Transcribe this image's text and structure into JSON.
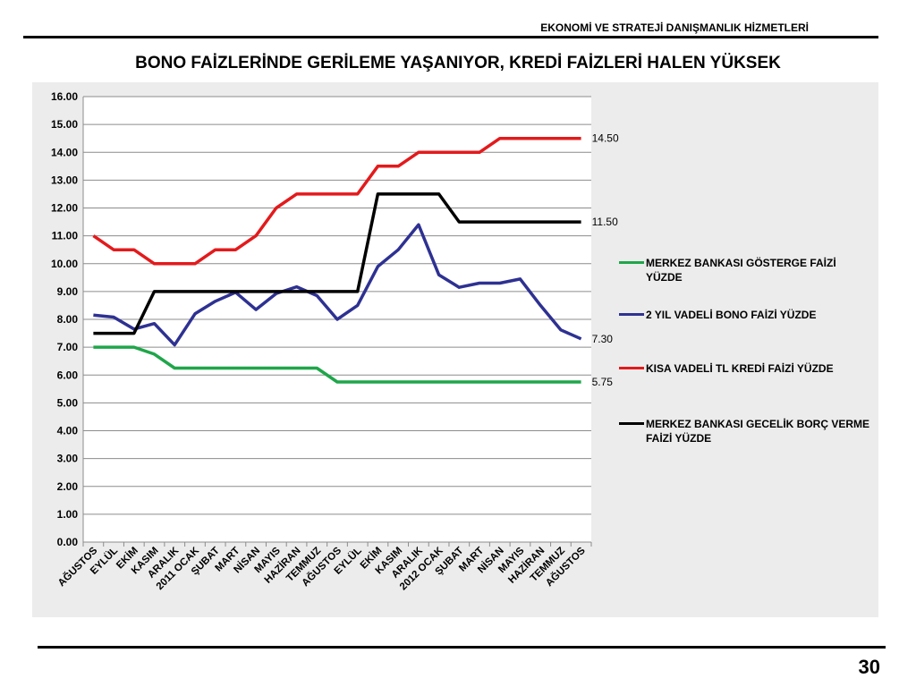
{
  "header": {
    "text": "EKONOMİ VE STRATEJİ DANIŞMANLIK HİZMETLERİ"
  },
  "title": "BONO FAİZLERİNDE GERİLEME YAŞANIYOR,  KREDİ FAİZLERİ HALEN YÜKSEK",
  "page_number": "30",
  "chart_data": {
    "type": "line",
    "categories": [
      "AĞUSTOS",
      "EYLÜL",
      "EKİM",
      "KASIM",
      "ARALIK",
      "2011 OCAK",
      "ŞUBAT",
      "MART",
      "NİSAN",
      "MAYIS",
      "HAZİRAN",
      "TEMMUZ",
      "AĞUSTOS",
      "EYLÜL",
      "EKİM",
      "KASIM",
      "ARALIK",
      "2012 OCAK",
      "ŞUBAT",
      "MART",
      "NİSAN",
      "MAYIS",
      "HAZİRAN",
      "TEMMUZ",
      "AĞUSTOS"
    ],
    "ylim": [
      0,
      16
    ],
    "yticks": [
      "0.00",
      "1.00",
      "2.00",
      "3.00",
      "4.00",
      "5.00",
      "6.00",
      "7.00",
      "8.00",
      "9.00",
      "10.00",
      "11.00",
      "12.00",
      "13.00",
      "14.00",
      "15.00",
      "16.00"
    ],
    "grid": true,
    "legend_position": "right",
    "series": [
      {
        "name": "MERKEZ BANKASI GÖSTERGE FAİZİ YÜZDE",
        "color": "#1fa64a",
        "values": [
          7.0,
          7.0,
          7.0,
          6.75,
          6.25,
          6.25,
          6.25,
          6.25,
          6.25,
          6.25,
          6.25,
          6.25,
          5.75,
          5.75,
          5.75,
          5.75,
          5.75,
          5.75,
          5.75,
          5.75,
          5.75,
          5.75,
          5.75,
          5.75,
          5.75
        ],
        "end_label": "5.75"
      },
      {
        "name": "2 YIL VADELİ BONO FAİZİ YÜZDE",
        "color": "#2e3192",
        "values": [
          8.15,
          8.08,
          7.65,
          7.85,
          7.08,
          8.2,
          8.65,
          8.97,
          8.35,
          8.93,
          9.17,
          8.85,
          8.0,
          8.5,
          9.9,
          10.5,
          11.4,
          9.6,
          9.15,
          9.3,
          9.3,
          9.45,
          8.5,
          7.62,
          7.3
        ],
        "end_label": "7.30"
      },
      {
        "name": "KISA VADELİ TL KREDİ FAİZİ YÜZDE",
        "color": "#e31a1c",
        "values": [
          11.0,
          10.5,
          10.5,
          10.0,
          10.0,
          10.0,
          10.5,
          10.5,
          11.0,
          12.0,
          12.5,
          12.5,
          12.5,
          12.5,
          13.5,
          13.5,
          14.0,
          14.0,
          14.0,
          14.0,
          14.5,
          14.5,
          14.5,
          14.5,
          14.5
        ],
        "end_label": "14.50"
      },
      {
        "name": "MERKEZ BANKASI GECELİK BORÇ VERME FAİZİ YÜZDE",
        "color": "#000000",
        "values": [
          7.5,
          7.5,
          7.5,
          9.0,
          9.0,
          9.0,
          9.0,
          9.0,
          9.0,
          9.0,
          9.0,
          9.0,
          9.0,
          9.0,
          12.5,
          12.5,
          12.5,
          12.5,
          11.5,
          11.5,
          11.5,
          11.5,
          11.5,
          11.5,
          11.5
        ],
        "end_label": "11.50"
      }
    ]
  }
}
